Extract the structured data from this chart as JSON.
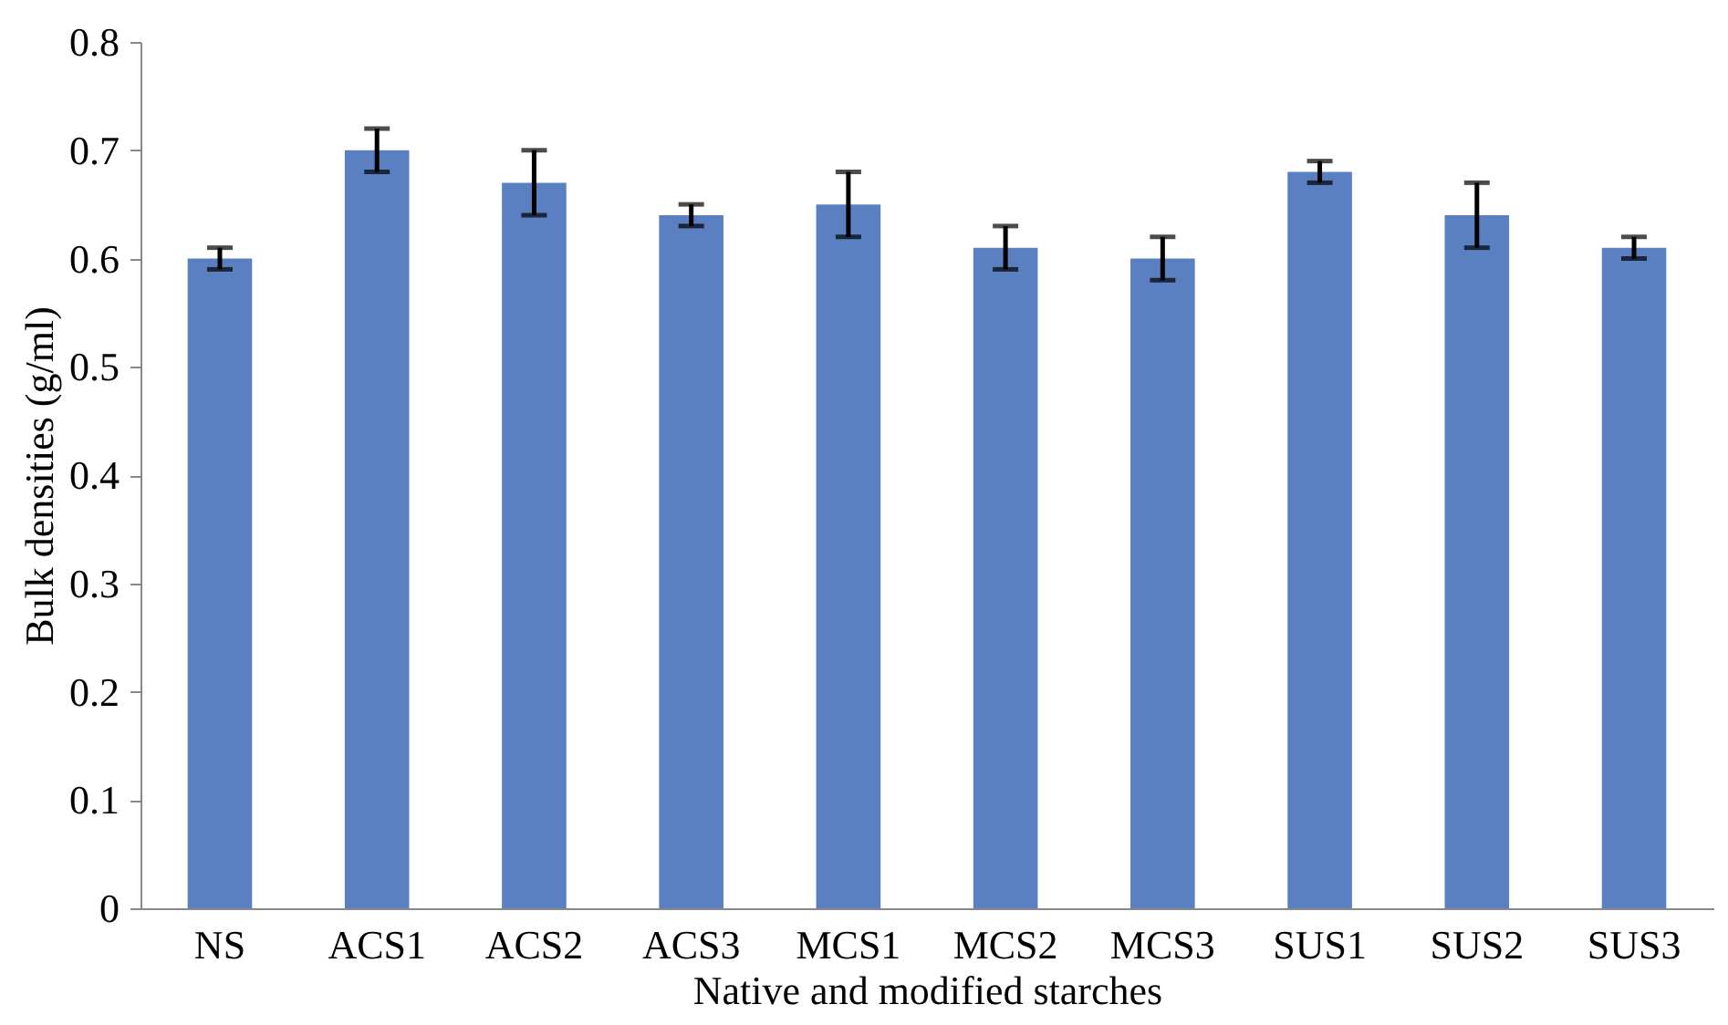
{
  "chart_data": {
    "type": "bar",
    "xlabel": "Native and modified starches",
    "ylabel": "Bulk densities (g/ml)",
    "categories": [
      "NS",
      "ACS1",
      "ACS2",
      "ACS3",
      "MCS1",
      "MCS2",
      "MCS3",
      "SUS1",
      "SUS2",
      "SUS3"
    ],
    "values": [
      0.6,
      0.7,
      0.67,
      0.64,
      0.65,
      0.61,
      0.6,
      0.68,
      0.64,
      0.61
    ],
    "errors": [
      0.01,
      0.02,
      0.03,
      0.01,
      0.03,
      0.02,
      0.02,
      0.01,
      0.03,
      0.01
    ],
    "color": "#5b80c2",
    "ylim": [
      0,
      0.8
    ],
    "yticks": [
      0,
      0.1,
      0.2,
      0.3,
      0.4,
      0.5,
      0.6,
      0.7,
      0.8
    ],
    "grid": false
  }
}
